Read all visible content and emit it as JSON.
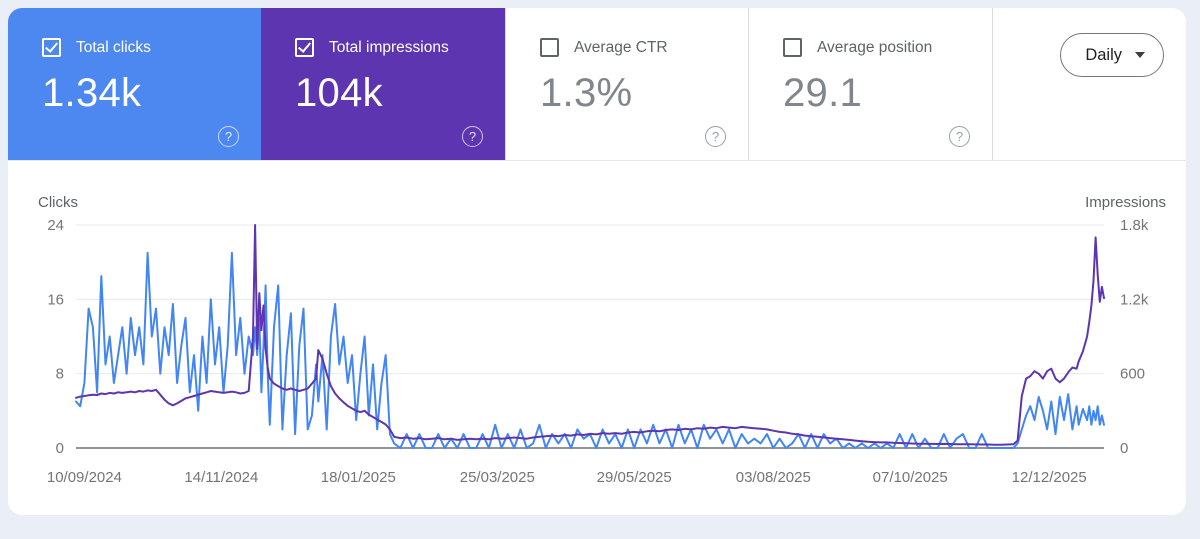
{
  "icons": {
    "help": "?"
  },
  "cards_row": {
    "cards": [
      {
        "label": "Total clicks",
        "value": "1.34k",
        "selected": true,
        "background": "#4d87f0"
      },
      {
        "label": "Total impressions",
        "value": "104k",
        "selected": true,
        "background": "#5e35b1"
      },
      {
        "label": "Average CTR",
        "value": "1.3%",
        "selected": false,
        "background": "#ffffff"
      },
      {
        "label": "Average position",
        "value": "29.1",
        "selected": false,
        "background": "#ffffff"
      }
    ],
    "period_selector": {
      "value": "Daily"
    }
  },
  "chart_data": {
    "type": "line",
    "title": "",
    "left_axis": {
      "label": "Clicks",
      "ticks": [
        0,
        8,
        16,
        24
      ],
      "range": [
        0,
        24
      ]
    },
    "right_axis": {
      "label": "Impressions",
      "ticks": [
        "0",
        "600",
        "1.2k",
        "1.8k"
      ],
      "range": [
        0,
        1800
      ]
    },
    "x_tick_labels": [
      "10/09/2024",
      "14/11/2024",
      "18/01/2025",
      "25/03/2025",
      "29/05/2025",
      "03/08/2025",
      "07/10/2025",
      "12/12/2025"
    ],
    "x_tick_days": [
      4,
      69,
      134,
      200,
      265,
      331,
      396,
      462
    ],
    "x_range_days": [
      0,
      488
    ],
    "grid": true,
    "legend_position": "none",
    "series": [
      {
        "name": "Clicks",
        "color": "#4285f4",
        "axis": "left"
      },
      {
        "name": "Impressions",
        "color": "#5e35b1",
        "axis": "right"
      }
    ],
    "points_format": [
      "day_index",
      "clicks",
      "impressions"
    ],
    "points": [
      [
        0,
        5,
        405
      ],
      [
        2,
        4.5,
        415
      ],
      [
        4,
        7,
        420
      ],
      [
        6,
        15,
        425
      ],
      [
        8,
        13,
        430
      ],
      [
        10,
        6,
        428
      ],
      [
        12,
        18.5,
        440
      ],
      [
        14,
        9,
        435
      ],
      [
        16,
        12,
        445
      ],
      [
        18,
        7,
        440
      ],
      [
        20,
        10,
        450
      ],
      [
        22,
        13,
        445
      ],
      [
        24,
        8,
        450
      ],
      [
        26,
        14,
        455
      ],
      [
        28,
        10,
        450
      ],
      [
        30,
        13,
        460
      ],
      [
        32,
        9,
        455
      ],
      [
        34,
        21,
        465
      ],
      [
        36,
        12,
        460
      ],
      [
        38,
        15,
        470
      ],
      [
        40,
        8,
        430
      ],
      [
        42,
        13,
        390
      ],
      [
        44,
        10,
        360
      ],
      [
        46,
        15.5,
        345
      ],
      [
        48,
        7,
        360
      ],
      [
        50,
        11,
        380
      ],
      [
        52,
        14,
        400
      ],
      [
        54,
        6,
        410
      ],
      [
        56,
        10,
        420
      ],
      [
        58,
        4,
        430
      ],
      [
        60,
        12,
        440
      ],
      [
        62,
        7,
        450
      ],
      [
        64,
        16,
        460
      ],
      [
        66,
        9,
        455
      ],
      [
        68,
        13,
        450
      ],
      [
        70,
        6,
        445
      ],
      [
        72,
        11,
        450
      ],
      [
        74,
        21,
        455
      ],
      [
        76,
        10,
        450
      ],
      [
        78,
        14,
        440
      ],
      [
        80,
        8,
        445
      ],
      [
        82,
        12,
        460
      ],
      [
        84,
        10,
        900
      ],
      [
        85,
        13,
        1800
      ],
      [
        86,
        10,
        800
      ],
      [
        87,
        14,
        1250
      ],
      [
        88,
        6,
        950
      ],
      [
        89,
        11,
        1150
      ],
      [
        90,
        17.5,
        800
      ],
      [
        91,
        8,
        650
      ],
      [
        92,
        2.5,
        560
      ],
      [
        94,
        13,
        520
      ],
      [
        96,
        17.5,
        500
      ],
      [
        98,
        2,
        480
      ],
      [
        100,
        10,
        470
      ],
      [
        102,
        14.5,
        480
      ],
      [
        104,
        1.5,
        470
      ],
      [
        106,
        11,
        460
      ],
      [
        108,
        15,
        470
      ],
      [
        110,
        2,
        480
      ],
      [
        112,
        3.5,
        520
      ],
      [
        114,
        9,
        560
      ],
      [
        115,
        5,
        790
      ],
      [
        117,
        10,
        720
      ],
      [
        119,
        2,
        600
      ],
      [
        121,
        12,
        500
      ],
      [
        123,
        15.5,
        440
      ],
      [
        125,
        9,
        400
      ],
      [
        127,
        12,
        370
      ],
      [
        129,
        7,
        340
      ],
      [
        131,
        10,
        320
      ],
      [
        133,
        3,
        300
      ],
      [
        135,
        8,
        290
      ],
      [
        137,
        12,
        300
      ],
      [
        139,
        3.5,
        270
      ],
      [
        141,
        9,
        250
      ],
      [
        143,
        2,
        230
      ],
      [
        145,
        7,
        210
      ],
      [
        147,
        10,
        190
      ],
      [
        149,
        1.5,
        150
      ],
      [
        151,
        0.5,
        90
      ],
      [
        154,
        0,
        80
      ],
      [
        157,
        1.5,
        85
      ],
      [
        160,
        0,
        75
      ],
      [
        163,
        1.5,
        80
      ],
      [
        166,
        0,
        70
      ],
      [
        169,
        0,
        75
      ],
      [
        172,
        1.5,
        80
      ],
      [
        175,
        0,
        70
      ],
      [
        178,
        1,
        75
      ],
      [
        181,
        0,
        65
      ],
      [
        184,
        1.5,
        70
      ],
      [
        187,
        0,
        75
      ],
      [
        190,
        0,
        70
      ],
      [
        193,
        1.5,
        75
      ],
      [
        196,
        0,
        70
      ],
      [
        199,
        2.5,
        80
      ],
      [
        202,
        0,
        75
      ],
      [
        205,
        1.5,
        80
      ],
      [
        208,
        0,
        85
      ],
      [
        211,
        2,
        80
      ],
      [
        214,
        0,
        75
      ],
      [
        217,
        0.5,
        85
      ],
      [
        220,
        2.5,
        90
      ],
      [
        223,
        0,
        95
      ],
      [
        226,
        1.5,
        100
      ],
      [
        229,
        0.5,
        95
      ],
      [
        232,
        1.5,
        105
      ],
      [
        235,
        0,
        100
      ],
      [
        238,
        2,
        110
      ],
      [
        241,
        1,
        105
      ],
      [
        244,
        1.5,
        115
      ],
      [
        247,
        0,
        110
      ],
      [
        250,
        2,
        120
      ],
      [
        253,
        0.5,
        115
      ],
      [
        256,
        1.5,
        120
      ],
      [
        259,
        0,
        115
      ],
      [
        262,
        2,
        125
      ],
      [
        265,
        0,
        130
      ],
      [
        268,
        2,
        125
      ],
      [
        271,
        0.5,
        135
      ],
      [
        274,
        2.5,
        140
      ],
      [
        277,
        0.5,
        135
      ],
      [
        280,
        2,
        145
      ],
      [
        283,
        0,
        150
      ],
      [
        286,
        2.5,
        145
      ],
      [
        289,
        0.5,
        155
      ],
      [
        292,
        2,
        150
      ],
      [
        295,
        0,
        160
      ],
      [
        298,
        2.5,
        155
      ],
      [
        301,
        1,
        165
      ],
      [
        304,
        2,
        160
      ],
      [
        307,
        0.5,
        170
      ],
      [
        310,
        2,
        165
      ],
      [
        313,
        0,
        160
      ],
      [
        316,
        1.5,
        170
      ],
      [
        319,
        0.5,
        165
      ],
      [
        322,
        1,
        160
      ],
      [
        325,
        0.5,
        155
      ],
      [
        328,
        1.5,
        150
      ],
      [
        331,
        0,
        140
      ],
      [
        334,
        1,
        130
      ],
      [
        337,
        0,
        125
      ],
      [
        340,
        0.5,
        115
      ],
      [
        343,
        1.5,
        110
      ],
      [
        346,
        0,
        100
      ],
      [
        349,
        1.5,
        95
      ],
      [
        352,
        0,
        90
      ],
      [
        355,
        1.5,
        85
      ],
      [
        358,
        0.5,
        80
      ],
      [
        361,
        1,
        75
      ],
      [
        364,
        0,
        70
      ],
      [
        367,
        0.5,
        65
      ],
      [
        370,
        0,
        60
      ],
      [
        373,
        0.5,
        55
      ],
      [
        376,
        0,
        50
      ],
      [
        379,
        0.5,
        48
      ],
      [
        382,
        0,
        45
      ],
      [
        385,
        0.5,
        45
      ],
      [
        388,
        0,
        42
      ],
      [
        391,
        1.5,
        40
      ],
      [
        394,
        0,
        38
      ],
      [
        397,
        1.5,
        36
      ],
      [
        400,
        0,
        35
      ],
      [
        403,
        1,
        34
      ],
      [
        406,
        0,
        33
      ],
      [
        409,
        0,
        32
      ],
      [
        412,
        1.5,
        33
      ],
      [
        415,
        0,
        32
      ],
      [
        418,
        1,
        31
      ],
      [
        421,
        1.5,
        30
      ],
      [
        424,
        0,
        30
      ],
      [
        427,
        0,
        29
      ],
      [
        430,
        1.5,
        28
      ],
      [
        433,
        0,
        28
      ],
      [
        436,
        0,
        27
      ],
      [
        439,
        0,
        27
      ],
      [
        442,
        0,
        28
      ],
      [
        445,
        0,
        30
      ],
      [
        447,
        0.5,
        60
      ],
      [
        449,
        2,
        420
      ],
      [
        451,
        3.5,
        560
      ],
      [
        453,
        4.5,
        580
      ],
      [
        455,
        3,
        620
      ],
      [
        457,
        5.5,
        600
      ],
      [
        459,
        4,
        560
      ],
      [
        461,
        2,
        620
      ],
      [
        463,
        5,
        640
      ],
      [
        465,
        1.5,
        560
      ],
      [
        467,
        5.5,
        530
      ],
      [
        469,
        3,
        560
      ],
      [
        471,
        5.8,
        610
      ],
      [
        473,
        2,
        650
      ],
      [
        475,
        4.5,
        640
      ],
      [
        476,
        2.5,
        700
      ],
      [
        478,
        4.2,
        780
      ],
      [
        480,
        3,
        900
      ],
      [
        481,
        4.5,
        1020
      ],
      [
        482,
        2.5,
        1150
      ],
      [
        483,
        4,
        1350
      ],
      [
        484,
        3,
        1700
      ],
      [
        485,
        4.5,
        1400
      ],
      [
        486,
        2.5,
        1180
      ],
      [
        487,
        3.5,
        1300
      ],
      [
        488,
        2.5,
        1210
      ]
    ]
  }
}
